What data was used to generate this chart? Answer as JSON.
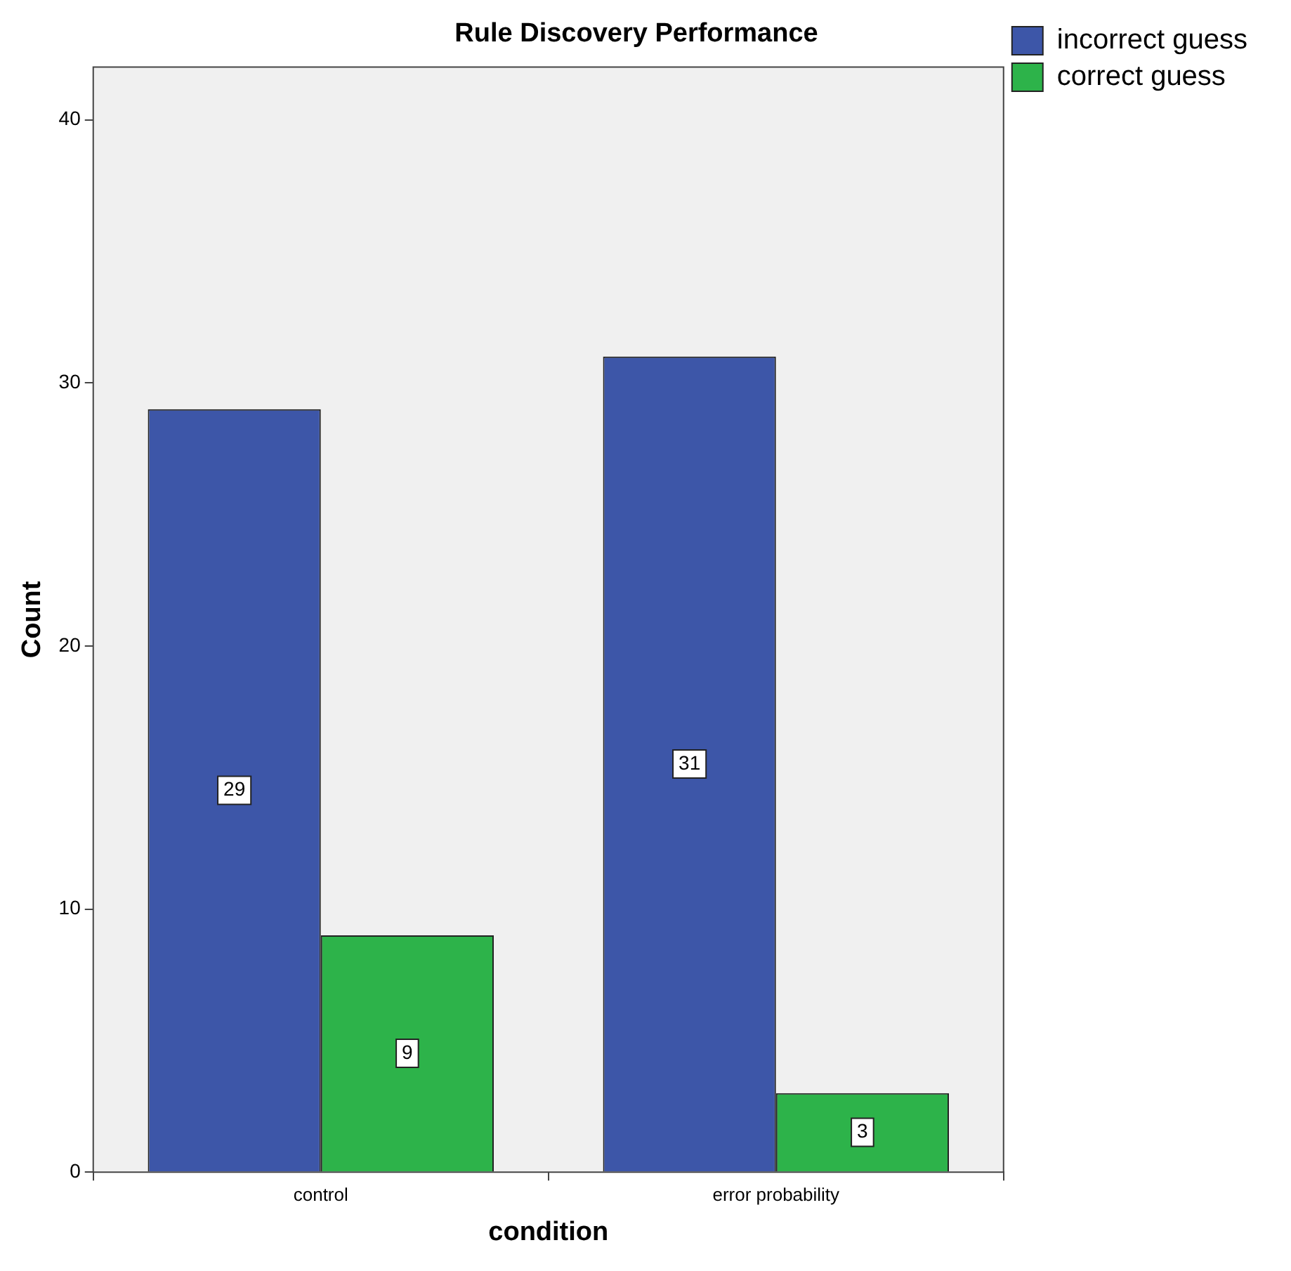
{
  "chart_data": {
    "type": "bar",
    "title": "Rule Discovery Performance",
    "xlabel": "condition",
    "ylabel": "Count",
    "categories": [
      "control",
      "error probability"
    ],
    "series": [
      {
        "name": "incorrect guess",
        "color": "#3d56a8",
        "values": [
          29,
          31
        ]
      },
      {
        "name": "correct guess",
        "color": "#2db34a",
        "values": [
          9,
          3
        ]
      }
    ],
    "ylim": [
      0,
      42
    ],
    "yticks": [
      0,
      10,
      20,
      30,
      40
    ],
    "grid": false,
    "legend": "top right",
    "data_labels": true
  }
}
